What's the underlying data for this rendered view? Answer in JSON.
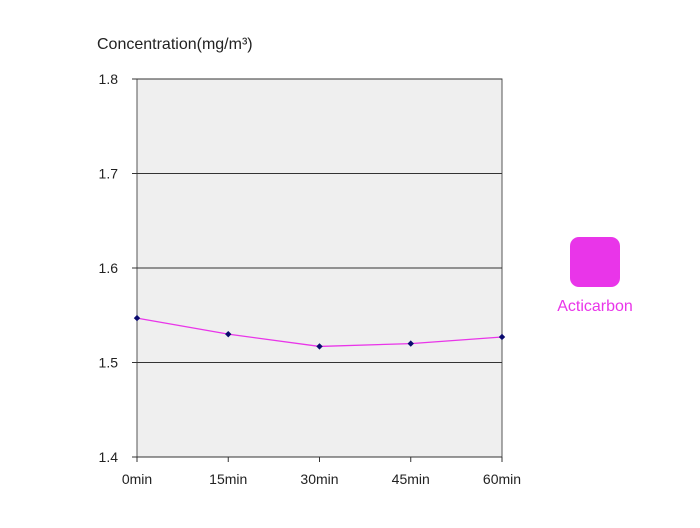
{
  "chart_data": {
    "type": "line",
    "ylabel": "Concentration(mg/m³)",
    "categories": [
      "0min",
      "15min",
      "30min",
      "45min",
      "60min"
    ],
    "ylim": [
      1.4,
      1.8
    ],
    "yticks": [
      "1.4",
      "1.5",
      "1.6",
      "1.7",
      "1.8"
    ],
    "grid": true,
    "legend_position": "right",
    "series": [
      {
        "name": "Acticarbon",
        "values": [
          1.547,
          1.53,
          1.517,
          1.52,
          1.527
        ],
        "line_color": "#e935e9",
        "marker_color": "#0a0a6e"
      }
    ],
    "colors": {
      "plot_background": "#efefef",
      "grid": "#333333",
      "legend_swatch": "#e935e9"
    }
  }
}
